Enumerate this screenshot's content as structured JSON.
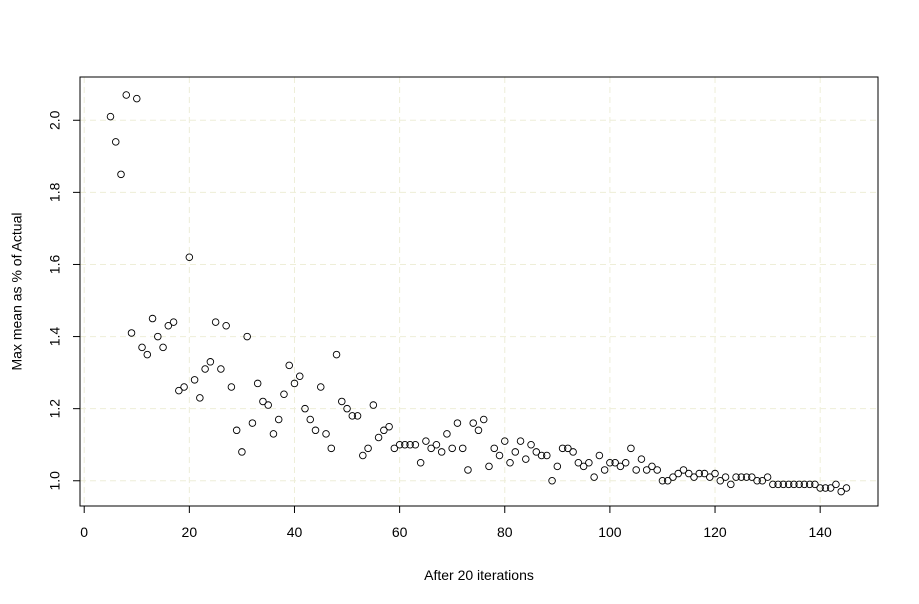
{
  "chart_data": {
    "type": "scatter",
    "title": "",
    "xlabel": "After 20 iterations",
    "ylabel": "Max mean as % of Actual",
    "xlim": [
      0,
      150
    ],
    "ylim": [
      0.93,
      2.12
    ],
    "xticks": [
      0,
      20,
      40,
      60,
      80,
      100,
      120,
      140
    ],
    "yticks": [
      1.0,
      1.2,
      1.4,
      1.6,
      1.8,
      2.0
    ],
    "ytick_labels": [
      "1.0",
      "1.2",
      "1.4",
      "1.6",
      "1.8",
      "2.0"
    ],
    "grid": true,
    "grid_color": "#eeeed8",
    "marker": "open-circle",
    "x": [
      5,
      6,
      7,
      8,
      9,
      10,
      11,
      12,
      13,
      14,
      15,
      16,
      17,
      18,
      19,
      20,
      21,
      22,
      23,
      24,
      25,
      26,
      27,
      28,
      29,
      30,
      31,
      32,
      33,
      34,
      35,
      36,
      37,
      38,
      39,
      40,
      41,
      42,
      43,
      44,
      45,
      46,
      47,
      48,
      49,
      50,
      51,
      52,
      53,
      54,
      55,
      56,
      57,
      58,
      59,
      60,
      61,
      62,
      63,
      64,
      65,
      66,
      67,
      68,
      69,
      70,
      71,
      72,
      73,
      74,
      75,
      76,
      77,
      78,
      79,
      80,
      81,
      82,
      83,
      84,
      85,
      86,
      87,
      88,
      89,
      90,
      91,
      92,
      93,
      94,
      95,
      96,
      97,
      98,
      99,
      100,
      101,
      102,
      103,
      104,
      105,
      106,
      107,
      108,
      109,
      110,
      111,
      112,
      113,
      114,
      115,
      116,
      117,
      118,
      119,
      120,
      121,
      122,
      123,
      124,
      125,
      126,
      127,
      128,
      129,
      130,
      131,
      132,
      133,
      134,
      135,
      136,
      137,
      138,
      139,
      140,
      141,
      142,
      143,
      144,
      145
    ],
    "y": [
      2.01,
      1.94,
      1.85,
      2.07,
      1.41,
      2.06,
      1.37,
      1.35,
      1.45,
      1.4,
      1.37,
      1.43,
      1.44,
      1.25,
      1.26,
      1.62,
      1.28,
      1.23,
      1.31,
      1.33,
      1.44,
      1.31,
      1.43,
      1.26,
      1.14,
      1.08,
      1.4,
      1.16,
      1.27,
      1.22,
      1.21,
      1.13,
      1.17,
      1.24,
      1.32,
      1.27,
      1.29,
      1.2,
      1.17,
      1.14,
      1.26,
      1.13,
      1.09,
      1.35,
      1.22,
      1.2,
      1.18,
      1.18,
      1.07,
      1.09,
      1.21,
      1.12,
      1.14,
      1.15,
      1.09,
      1.1,
      1.1,
      1.1,
      1.1,
      1.05,
      1.11,
      1.09,
      1.1,
      1.08,
      1.13,
      1.09,
      1.16,
      1.09,
      1.03,
      1.16,
      1.14,
      1.17,
      1.04,
      1.09,
      1.07,
      1.11,
      1.05,
      1.08,
      1.11,
      1.06,
      1.1,
      1.08,
      1.07,
      1.07,
      1.0,
      1.04,
      1.09,
      1.09,
      1.08,
      1.05,
      1.04,
      1.05,
      1.01,
      1.07,
      1.03,
      1.05,
      1.05,
      1.04,
      1.05,
      1.09,
      1.03,
      1.06,
      1.03,
      1.04,
      1.03,
      1.0,
      1.0,
      1.01,
      1.02,
      1.03,
      1.02,
      1.01,
      1.02,
      1.02,
      1.01,
      1.02,
      1.0,
      1.01,
      0.99,
      1.01,
      1.01,
      1.01,
      1.01,
      1.0,
      1.0,
      1.01,
      0.99,
      0.99,
      0.99,
      0.99,
      0.99,
      0.99,
      0.99,
      0.99,
      0.99,
      0.98,
      0.98,
      0.98,
      0.99,
      0.97,
      0.98
    ]
  }
}
